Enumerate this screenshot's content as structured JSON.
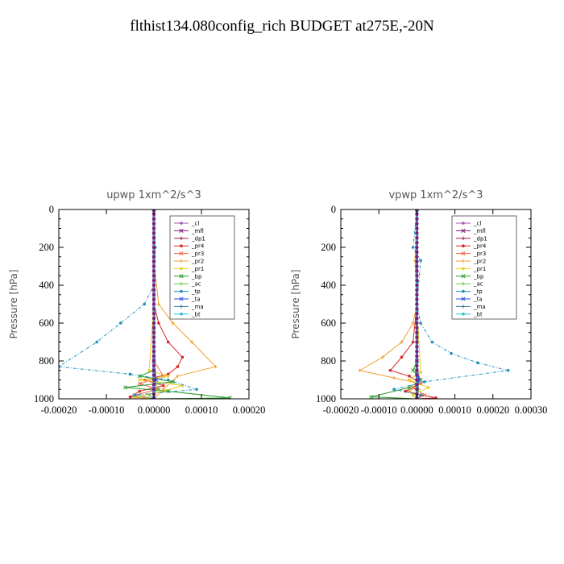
{
  "page_title": "flthist134.080config_rich  BUDGET at275E,-20N",
  "chart_data": [
    {
      "type": "line",
      "title": "upwp   1xm^2/s^3",
      "ylabel": "Pressure [hPa]",
      "xlabel": "",
      "xlim": [
        -0.0002,
        0.0002
      ],
      "ylim": [
        1000,
        0
      ],
      "x_ticks": [
        "-0.00020",
        "-0.00010",
        "0.00000",
        "0.00010",
        "0.00020"
      ],
      "x_tick_values": [
        -0.0002,
        -0.0001,
        0,
        0.0001,
        0.0002
      ],
      "y_ticks": [
        "0",
        "200",
        "400",
        "600",
        "800",
        "1000"
      ],
      "y_tick_values": [
        0,
        200,
        400,
        600,
        800,
        1000
      ],
      "legend": "top-right",
      "series": [
        {
          "name": "_cl",
          "color": "#9b59b6",
          "x": [
            0,
            0,
            0,
            0,
            0,
            0,
            0,
            0,
            0,
            0,
            0
          ],
          "p": [
            0,
            100,
            200,
            300,
            400,
            500,
            600,
            700,
            800,
            900,
            1000
          ]
        },
        {
          "name": "_mfl",
          "color": "#7b1f7b",
          "x": [
            0,
            0,
            0,
            0,
            0,
            0,
            0,
            0,
            0,
            0,
            0
          ],
          "p": [
            0,
            100,
            200,
            300,
            400,
            500,
            600,
            700,
            800,
            900,
            1000
          ]
        },
        {
          "name": "_dp1",
          "color": "#a0204a",
          "x": [
            0,
            0,
            0,
            0,
            0,
            0,
            0,
            0,
            0,
            0,
            0
          ],
          "p": [
            0,
            100,
            200,
            300,
            400,
            500,
            600,
            700,
            800,
            900,
            1000
          ]
        },
        {
          "name": "_pr4",
          "color": "#d62728",
          "x": [
            0,
            0,
            0,
            1e-05,
            3e-05,
            6e-05,
            5e-05,
            3e-05,
            -2e-05,
            2e-05,
            -3e-05,
            -5e-05,
            0
          ],
          "p": [
            0,
            300,
            500,
            600,
            700,
            780,
            830,
            870,
            900,
            930,
            960,
            990,
            1000
          ]
        },
        {
          "name": "_pr3",
          "color": "#e8654a",
          "x": [
            0,
            0,
            2e-05,
            -3e-05,
            1e-05,
            -4e-05,
            0
          ],
          "p": [
            0,
            800,
            880,
            920,
            950,
            980,
            1000
          ]
        },
        {
          "name": "_pr2",
          "color": "#f0a030",
          "x": [
            0,
            0,
            1e-05,
            4e-05,
            8e-05,
            0.00013,
            5e-05,
            2e-05,
            0
          ],
          "p": [
            0,
            270,
            500,
            600,
            700,
            830,
            880,
            950,
            1000
          ]
        },
        {
          "name": "_pr1",
          "color": "#e8d020",
          "x": [
            0,
            0,
            -1e-05,
            3e-05,
            -3e-05,
            6e-05,
            2e-05,
            -4e-05,
            0
          ],
          "p": [
            0,
            500,
            850,
            880,
            900,
            930,
            960,
            990,
            1000
          ]
        },
        {
          "name": "_bp",
          "color": "#2a9a2a",
          "x": [
            0,
            0,
            -3e-05,
            4e-05,
            -6e-05,
            3e-05,
            0.00016,
            0
          ],
          "p": [
            0,
            850,
            880,
            910,
            940,
            960,
            995,
            1000
          ]
        },
        {
          "name": "_ac",
          "color": "#66cc44",
          "x": [
            0,
            0,
            1e-05,
            -1e-05,
            0
          ],
          "p": [
            0,
            900,
            950,
            980,
            1000
          ]
        },
        {
          "name": "_tp",
          "color": "#1f8fbf",
          "x": [
            0,
            3e-06,
            0,
            -2e-05,
            -7e-05,
            -0.00012,
            -0.0002,
            -5e-05,
            3e-05,
            9e-05,
            -4e-05,
            0
          ],
          "p": [
            0,
            200,
            400,
            500,
            600,
            700,
            830,
            870,
            900,
            950,
            980,
            1000
          ]
        },
        {
          "name": "_ta",
          "color": "#2b4fd0",
          "x": [
            0,
            0,
            5e-06,
            0,
            0
          ],
          "p": [
            0,
            800,
            900,
            950,
            1000
          ]
        },
        {
          "name": "_ma",
          "color": "#3a7a9a",
          "x": [
            0,
            0,
            0,
            0
          ],
          "p": [
            0,
            500,
            900,
            1000
          ]
        },
        {
          "name": "_bt",
          "color": "#20c0d0",
          "x": [
            0,
            0,
            0,
            0
          ],
          "p": [
            0,
            500,
            900,
            1000
          ]
        }
      ]
    },
    {
      "type": "line",
      "title": "vpwp   1xm^2/s^3",
      "ylabel": "Pressure [hPa]",
      "xlabel": "",
      "xlim": [
        -0.0002,
        0.0003
      ],
      "ylim": [
        1000,
        0
      ],
      "x_ticks": [
        "-0.00020",
        "-0.00010",
        "0.00000",
        "0.00010",
        "0.00020",
        "0.00030"
      ],
      "x_tick_values": [
        -0.0002,
        -0.0001,
        0,
        0.0001,
        0.0002,
        0.0003
      ],
      "y_ticks": [
        "0",
        "200",
        "400",
        "600",
        "800",
        "1000"
      ],
      "y_tick_values": [
        0,
        200,
        400,
        600,
        800,
        1000
      ],
      "legend": "top-right",
      "series": [
        {
          "name": "_cl",
          "color": "#9b59b6",
          "x": [
            0,
            0,
            0,
            0,
            0,
            0,
            0,
            0,
            0,
            0,
            0
          ],
          "p": [
            0,
            100,
            200,
            300,
            400,
            500,
            600,
            700,
            800,
            900,
            1000
          ]
        },
        {
          "name": "_mfl",
          "color": "#7b1f7b",
          "x": [
            0,
            0,
            0,
            0,
            0,
            0,
            0,
            0,
            0,
            0,
            0
          ],
          "p": [
            0,
            100,
            200,
            300,
            400,
            500,
            600,
            700,
            800,
            900,
            1000
          ]
        },
        {
          "name": "_dp1",
          "color": "#a0204a",
          "x": [
            0,
            0,
            0,
            0,
            0,
            0,
            0,
            0,
            0,
            0,
            0
          ],
          "p": [
            0,
            100,
            200,
            300,
            400,
            500,
            600,
            700,
            800,
            900,
            1000
          ]
        },
        {
          "name": "_pr4",
          "color": "#d62728",
          "x": [
            0,
            0,
            -1e-05,
            -4e-05,
            -7e-05,
            -2e-05,
            1e-05,
            -3e-05,
            5e-05,
            0
          ],
          "p": [
            0,
            500,
            700,
            780,
            850,
            880,
            920,
            960,
            995,
            1000
          ]
        },
        {
          "name": "_pr3",
          "color": "#e8654a",
          "x": [
            0,
            0,
            1e-05,
            -1e-05,
            2e-05,
            0
          ],
          "p": [
            0,
            850,
            900,
            940,
            980,
            1000
          ]
        },
        {
          "name": "_pr2",
          "color": "#f0a030",
          "x": [
            0,
            -5e-06,
            0,
            -1e-05,
            -4e-05,
            -9e-05,
            -0.00015,
            -6e-05,
            1e-05,
            -2e-05,
            0
          ],
          "p": [
            0,
            270,
            500,
            600,
            700,
            780,
            850,
            890,
            920,
            960,
            1000
          ]
        },
        {
          "name": "_pr1",
          "color": "#e8d020",
          "x": [
            0,
            0,
            1e-05,
            -2e-05,
            3e-05,
            -1e-05,
            0
          ],
          "p": [
            0,
            500,
            860,
            900,
            940,
            980,
            1000
          ]
        },
        {
          "name": "_bp",
          "color": "#2a9a2a",
          "x": [
            0,
            0,
            -1e-05,
            1e-05,
            -2e-05,
            -0.00012,
            0
          ],
          "p": [
            0,
            800,
            850,
            900,
            940,
            990,
            1000
          ]
        },
        {
          "name": "_ac",
          "color": "#66cc44",
          "x": [
            0,
            0,
            5e-06,
            0
          ],
          "p": [
            0,
            900,
            950,
            1000
          ]
        },
        {
          "name": "_tp",
          "color": "#1f8fbf",
          "x": [
            0,
            -1e-05,
            1e-05,
            0,
            1e-05,
            4e-05,
            9e-05,
            0.00016,
            0.00024,
            2e-05,
            -6e-05,
            1e-05,
            0
          ],
          "p": [
            0,
            200,
            270,
            500,
            600,
            700,
            760,
            810,
            850,
            910,
            950,
            980,
            1000
          ]
        },
        {
          "name": "_ta",
          "color": "#2b4fd0",
          "x": [
            0,
            0,
            5e-06,
            0
          ],
          "p": [
            0,
            800,
            900,
            1000
          ]
        },
        {
          "name": "_ma",
          "color": "#3a7a9a",
          "x": [
            0,
            0,
            0,
            0
          ],
          "p": [
            0,
            500,
            900,
            1000
          ]
        },
        {
          "name": "_bt",
          "color": "#20c0d0",
          "x": [
            0,
            0,
            0,
            0
          ],
          "p": [
            0,
            500,
            900,
            1000
          ]
        }
      ]
    }
  ]
}
